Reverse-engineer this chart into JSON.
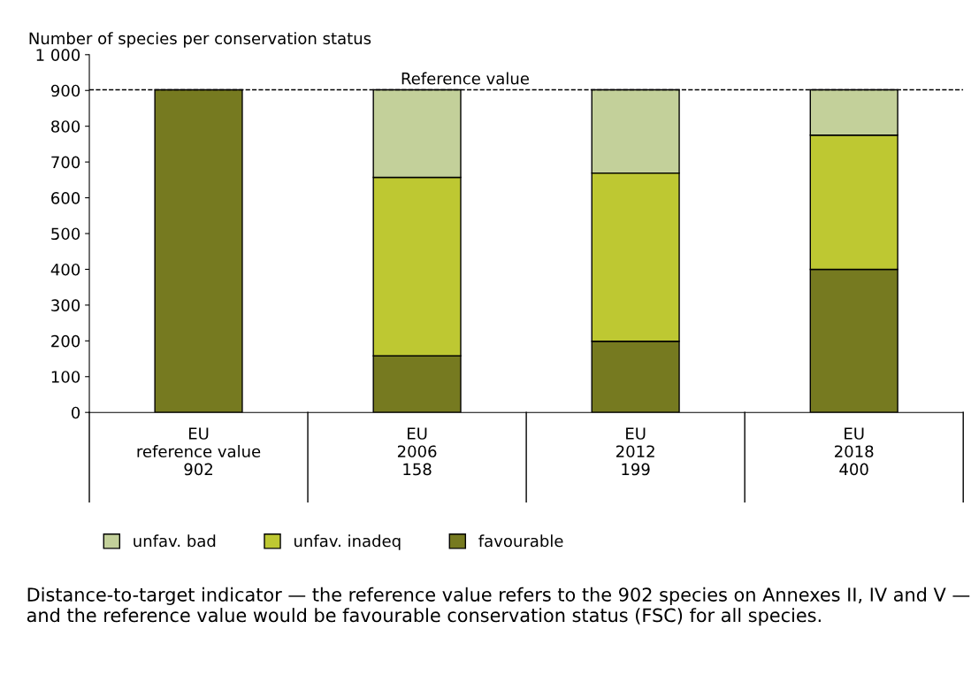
{
  "chart_data": {
    "type": "bar",
    "stacked": true,
    "ylabel": "Number of species per conservation status",
    "categories": [
      "EU\nreference value\n902",
      "EU\n2006\n158",
      "EU\n2012\n199",
      "EU\n2018\n400"
    ],
    "series": [
      {
        "name": "favourable",
        "color": "#767a20",
        "values": [
          902,
          158,
          199,
          400
        ]
      },
      {
        "name": "unfav. inadeq",
        "color": "#bec832",
        "values": [
          null,
          499,
          470,
          375
        ]
      },
      {
        "name": "unfav. bad",
        "color": "#c3d09a",
        "values": [
          null,
          245,
          233,
          127
        ]
      }
    ],
    "ylim": [
      0,
      1000
    ],
    "yticks": [
      0,
      100,
      200,
      300,
      400,
      500,
      600,
      700,
      800,
      {
        "value": 900,
        "label": "900"
      },
      {
        "value": 1000,
        "label": "1 000"
      }
    ],
    "ref_lines": [
      {
        "axis": "y",
        "value": 902,
        "label": "Reference value",
        "line_style": "dashed",
        "color": "#000000"
      }
    ],
    "grid": false,
    "legend": "bottom",
    "annotations": [
      "Distance-to-target indicator — the reference value refers to the 902 species on Annexes II, IV and V — and the reference value would be favourable conservation status (FSC) for all species."
    ]
  }
}
